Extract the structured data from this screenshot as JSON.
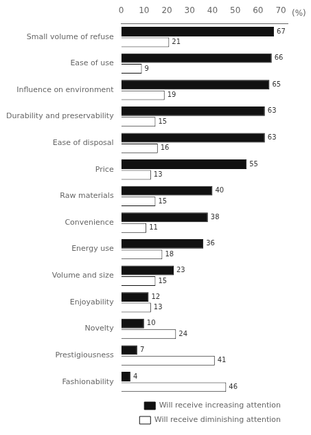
{
  "chart_data": {
    "type": "bar",
    "orientation": "horizontal",
    "categories": [
      "Small volume of refuse",
      "Ease of use",
      "Influence on environment",
      "Durability and preservability",
      "Ease of disposal",
      "Price",
      "Raw materials",
      "Convenience",
      "Energy use",
      "Volume and size",
      "Enjoyability",
      "Novelty",
      "Prestigiousness",
      "Fashionability"
    ],
    "series": [
      {
        "name": "Will receive increasing attention",
        "color": "#111111",
        "values": [
          67,
          66,
          65,
          63,
          63,
          55,
          40,
          38,
          36,
          23,
          12,
          10,
          7,
          4
        ]
      },
      {
        "name": "Will receive diminishing attention",
        "color": "#ffffff",
        "values": [
          21,
          9,
          19,
          15,
          16,
          13,
          15,
          11,
          18,
          15,
          13,
          24,
          41,
          46
        ]
      }
    ],
    "xlim": [
      0,
      73
    ],
    "xticks": [
      0,
      10,
      20,
      30,
      40,
      50,
      60,
      70
    ],
    "data_labels": true,
    "legend": "lower right",
    "grid": false,
    "annotations": [
      "(%)"
    ]
  }
}
